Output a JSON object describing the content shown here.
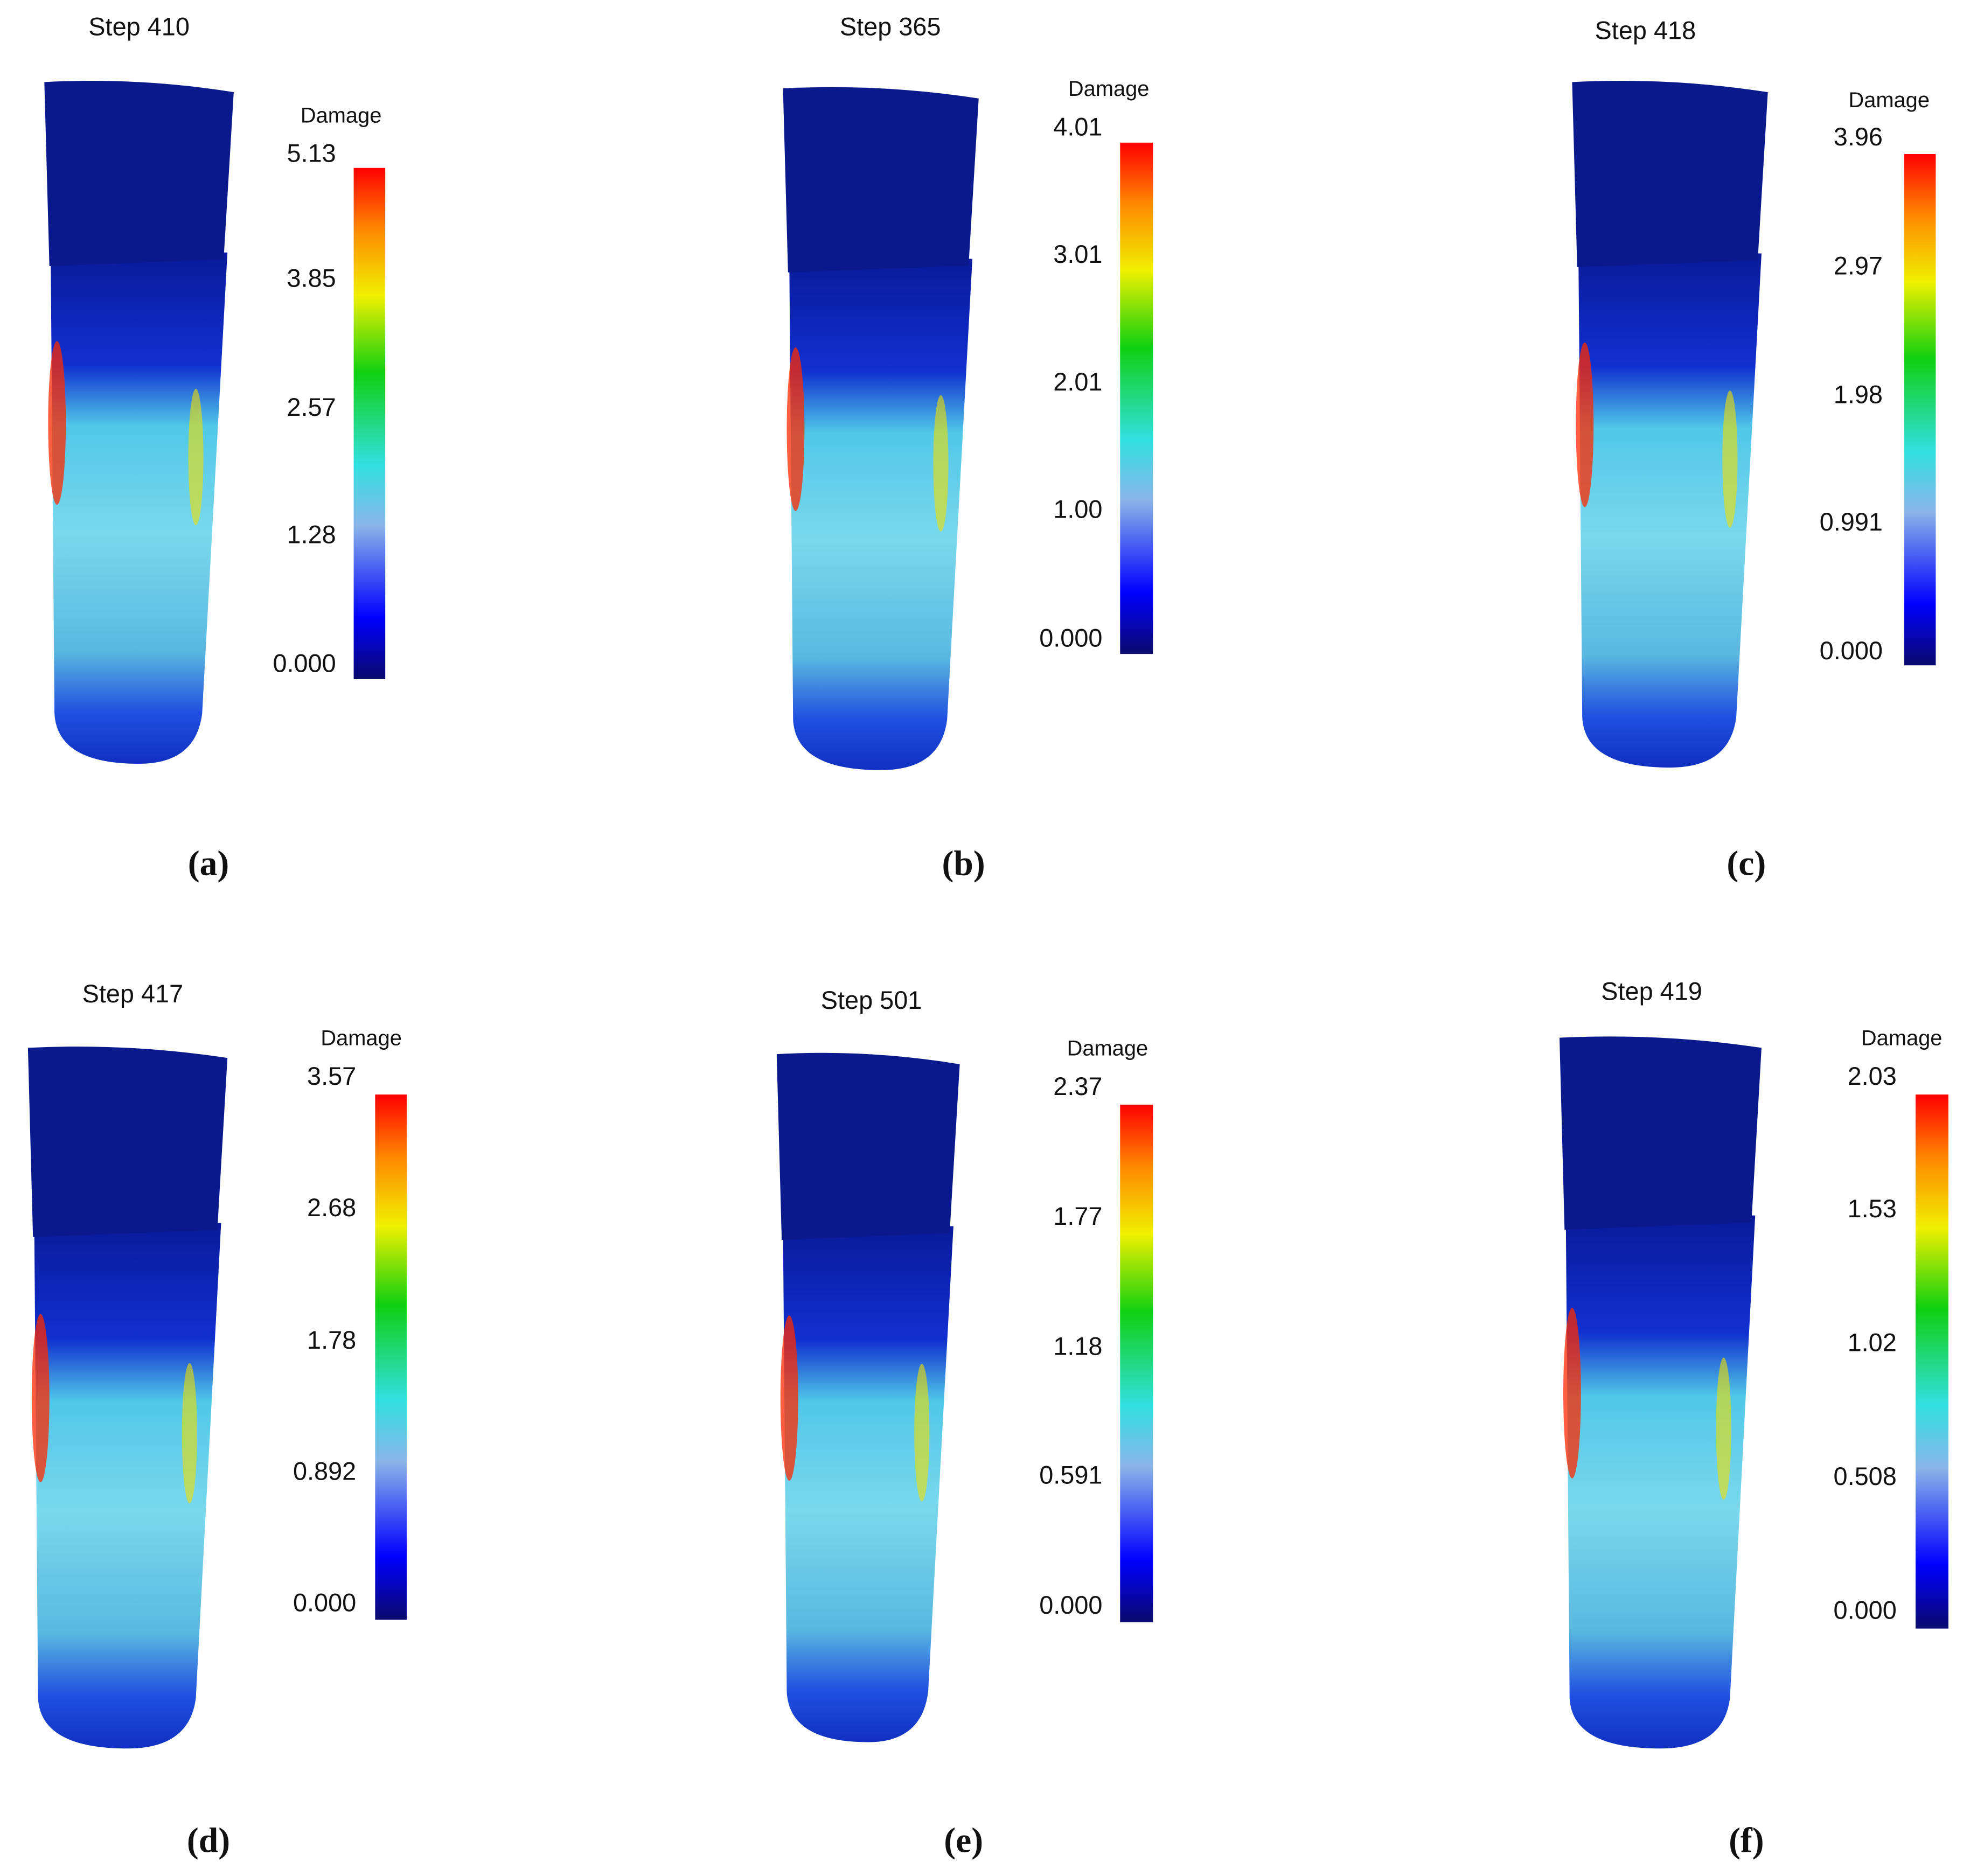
{
  "panels": [
    {
      "title": "Step 410",
      "colorbar": {
        "label": "Damage",
        "ticks": [
          "5.13",
          "3.85",
          "2.57",
          "1.28",
          "0.000"
        ]
      },
      "caption": "(a)"
    },
    {
      "title": "Step 365",
      "colorbar": {
        "label": "Damage",
        "ticks": [
          "4.01",
          "3.01",
          "2.01",
          "1.00",
          "0.000"
        ]
      },
      "caption": "(b)"
    },
    {
      "title": "Step 418",
      "colorbar": {
        "label": "Damage",
        "ticks": [
          "3.96",
          "2.97",
          "1.98",
          "0.991",
          "0.000"
        ]
      },
      "caption": "(c)"
    },
    {
      "title": "Step 417",
      "colorbar": {
        "label": "Damage",
        "ticks": [
          "3.57",
          "2.68",
          "1.78",
          "0.892",
          "0.000"
        ]
      },
      "caption": "(d)"
    },
    {
      "title": "Step 501",
      "colorbar": {
        "label": "Damage",
        "ticks": [
          "2.37",
          "1.77",
          "1.18",
          "0.591",
          "0.000"
        ]
      },
      "caption": "(e)"
    },
    {
      "title": "Step 419",
      "colorbar": {
        "label": "Damage",
        "ticks": [
          "2.03",
          "1.53",
          "1.02",
          "0.508",
          "0.000"
        ]
      },
      "caption": "(f)"
    }
  ]
}
